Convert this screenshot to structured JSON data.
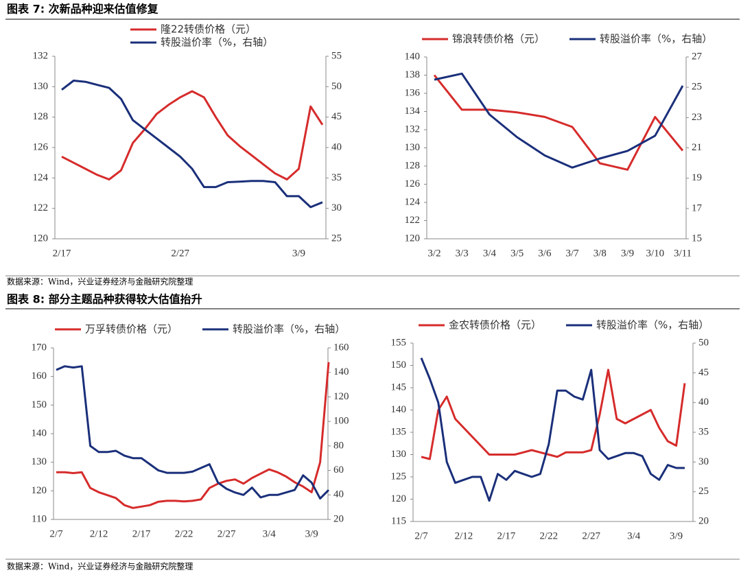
{
  "sections": [
    {
      "title": "图表 7:  次新品种迎来估值修复",
      "source": "数据来源：Wind，兴业证券经济与金融研究院整理"
    },
    {
      "title": "图表 8:  部分主题品种获得较大估值抬升",
      "source": "数据来源：Wind，兴业证券经济与金融研究院整理"
    }
  ],
  "chart_data": [
    {
      "type": "line",
      "categories": [
        "2/17",
        null,
        null,
        null,
        null,
        null,
        null,
        null,
        null,
        null,
        "2/27",
        null,
        null,
        null,
        null,
        null,
        null,
        null,
        null,
        null,
        "3/9",
        null,
        null
      ],
      "series": [
        {
          "name": "隆22转债价格（元）",
          "color": "#d62b2b",
          "axis": "y",
          "values": [
            125.4,
            125.0,
            124.6,
            124.2,
            123.9,
            124.5,
            126.3,
            127.2,
            128.2,
            128.8,
            129.3,
            129.7,
            129.3,
            128.0,
            126.8,
            126.1,
            125.5,
            124.9,
            124.3,
            123.9,
            124.6,
            128.7,
            127.5
          ]
        },
        {
          "name": "转股溢价率（%，右轴）",
          "color": "#1a2f7a",
          "axis": "y2",
          "values": [
            49.5,
            51,
            50.8,
            50.3,
            49.8,
            48,
            44.5,
            43,
            41.5,
            40,
            38.5,
            36.5,
            33.5,
            33.5,
            34.3,
            34.4,
            34.5,
            34.5,
            34.3,
            32,
            32,
            30.2,
            31
          ]
        }
      ],
      "ylim": [
        120,
        132
      ],
      "yticks": [
        120,
        122,
        124,
        126,
        128,
        130,
        132
      ],
      "y2lim": [
        25,
        55
      ],
      "y2ticks": [
        25,
        30,
        35,
        40,
        45,
        50,
        55
      ]
    },
    {
      "type": "line",
      "categories": [
        "3/2",
        "3/3",
        "3/4",
        "3/5",
        "3/6",
        "3/7",
        "3/8",
        "3/9",
        "3/10",
        "3/11"
      ],
      "series": [
        {
          "name": "锦浪转债价格（元）",
          "color": "#d62b2b",
          "axis": "y",
          "values": [
            138,
            134.2,
            134.2,
            133.9,
            133.4,
            132.3,
            128.3,
            127.6,
            133.4,
            129.7
          ]
        },
        {
          "name": "转股溢价率（%，右轴）",
          "color": "#1a2f7a",
          "axis": "y2",
          "values": [
            25.5,
            25.9,
            23.2,
            21.7,
            20.5,
            19.7,
            20.3,
            20.8,
            21.8,
            25.1
          ]
        }
      ],
      "ylim": [
        120,
        140
      ],
      "yticks": [
        120,
        122,
        124,
        126,
        128,
        130,
        132,
        134,
        136,
        138,
        140
      ],
      "y2lim": [
        15,
        27
      ],
      "y2ticks": [
        15,
        17,
        19,
        21,
        23,
        25,
        27
      ]
    },
    {
      "type": "line",
      "categories": [
        "2/7",
        null,
        null,
        null,
        null,
        "2/12",
        null,
        null,
        null,
        null,
        "2/17",
        null,
        null,
        null,
        null,
        "2/22",
        null,
        null,
        null,
        null,
        "2/27",
        null,
        null,
        null,
        null,
        "3/4",
        null,
        null,
        null,
        null,
        "3/9",
        null,
        null
      ],
      "series": [
        {
          "name": "万孚转债价格（元）",
          "color": "#d62b2b",
          "axis": "y",
          "values": [
            126.5,
            126.5,
            126.2,
            126.5,
            121,
            119.5,
            118.5,
            117.5,
            115,
            114,
            114.5,
            115,
            116.2,
            116.5,
            116.5,
            116.3,
            116.5,
            117,
            121,
            122.5,
            123.5,
            124,
            122.5,
            124.5,
            126,
            127.5,
            126.5,
            125,
            123,
            121.5,
            119.5,
            130,
            165
          ]
        },
        {
          "name": "转股溢价率（%，右轴）",
          "color": "#1a2f7a",
          "axis": "y2",
          "values": [
            142,
            145,
            144,
            145,
            80,
            75,
            75,
            76,
            72,
            70,
            70,
            65,
            60,
            58,
            58,
            58,
            59,
            62,
            65,
            50,
            45,
            42,
            40,
            46,
            38,
            40,
            40,
            42,
            44,
            56,
            50,
            37,
            44
          ]
        }
      ],
      "ylim": [
        110,
        170
      ],
      "yticks": [
        110,
        120,
        130,
        140,
        150,
        160,
        170
      ],
      "y2lim": [
        20,
        160
      ],
      "y2ticks": [
        20,
        40,
        60,
        80,
        100,
        120,
        140,
        160
      ]
    },
    {
      "type": "line",
      "categories": [
        "2/7",
        null,
        null,
        null,
        null,
        "2/12",
        null,
        null,
        null,
        null,
        "2/17",
        null,
        null,
        null,
        null,
        "2/22",
        null,
        null,
        null,
        null,
        "2/27",
        null,
        null,
        null,
        null,
        "3/4",
        null,
        null,
        null,
        null,
        "3/9",
        null
      ],
      "series": [
        {
          "name": "金农转债价格（元）",
          "color": "#d62b2b",
          "axis": "y",
          "values": [
            129.5,
            129,
            140,
            143,
            138,
            136,
            134,
            132,
            130,
            130,
            130,
            130,
            130.5,
            131,
            130.5,
            130,
            129.5,
            130.5,
            130.5,
            130.5,
            131,
            139,
            149,
            138,
            137,
            138,
            139,
            140,
            136,
            133,
            132,
            146
          ]
        },
        {
          "name": "转股溢价率（%，右轴）",
          "color": "#1a2f7a",
          "axis": "y2",
          "values": [
            47.5,
            44,
            40,
            30,
            26.5,
            27,
            27.5,
            27.5,
            23.5,
            28,
            27,
            28.5,
            28,
            27.5,
            28,
            33,
            42,
            42,
            41,
            40.5,
            45.5,
            32,
            30.5,
            31,
            31.5,
            31.5,
            31,
            28,
            27,
            29.5,
            29,
            29
          ]
        }
      ],
      "ylim": [
        115,
        155
      ],
      "yticks": [
        115,
        120,
        125,
        130,
        135,
        140,
        145,
        150,
        155
      ],
      "y2lim": [
        20,
        50
      ],
      "y2ticks": [
        20,
        25,
        30,
        35,
        40,
        45,
        50
      ]
    }
  ]
}
